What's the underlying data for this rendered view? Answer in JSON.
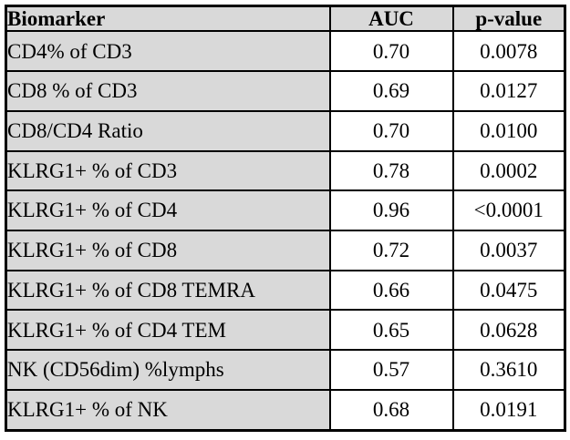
{
  "colors": {
    "shaded_bg": "#d9d9d9",
    "value_bg": "#ffffff",
    "border": "#000000",
    "text": "#000000"
  },
  "table": {
    "columns": [
      "Biomarker",
      "AUC",
      "p-value"
    ],
    "rows": [
      {
        "biomarker": "CD4% of CD3",
        "auc": "0.70",
        "p": "0.0078"
      },
      {
        "biomarker": "CD8 % of CD3",
        "auc": "0.69",
        "p": "0.0127"
      },
      {
        "biomarker": "CD8/CD4 Ratio",
        "auc": "0.70",
        "p": "0.0100"
      },
      {
        "biomarker": "KLRG1+ % of CD3",
        "auc": "0.78",
        "p": "0.0002"
      },
      {
        "biomarker": "KLRG1+ % of CD4",
        "auc": "0.96",
        "p": "<0.0001"
      },
      {
        "biomarker": "KLRG1+ % of CD8",
        "auc": "0.72",
        "p": "0.0037"
      },
      {
        "biomarker": "KLRG1+ % of CD8 TEMRA",
        "auc": "0.66",
        "p": "0.0475"
      },
      {
        "biomarker": "KLRG1+ % of CD4 TEM",
        "auc": "0.65",
        "p": "0.0628"
      },
      {
        "biomarker": "NK (CD56dim) %lymphs",
        "auc": "0.57",
        "p": "0.3610"
      },
      {
        "biomarker": "KLRG1+ % of NK",
        "auc": "0.68",
        "p": "0.0191"
      }
    ]
  },
  "chart_data": {
    "type": "table",
    "title": "",
    "columns": [
      "Biomarker",
      "AUC",
      "p-value"
    ],
    "rows": [
      [
        "CD4% of CD3",
        0.7,
        "0.0078"
      ],
      [
        "CD8 % of CD3",
        0.69,
        "0.0127"
      ],
      [
        "CD8/CD4 Ratio",
        0.7,
        "0.0100"
      ],
      [
        "KLRG1+ % of CD3",
        0.78,
        "0.0002"
      ],
      [
        "KLRG1+ % of CD4",
        0.96,
        "<0.0001"
      ],
      [
        "KLRG1+ % of CD8",
        0.72,
        "0.0037"
      ],
      [
        "KLRG1+ % of CD8 TEMRA",
        0.66,
        "0.0475"
      ],
      [
        "KLRG1+ % of CD4 TEM",
        0.65,
        "0.0628"
      ],
      [
        "NK (CD56dim) %lymphs",
        0.57,
        "0.3610"
      ],
      [
        "KLRG1+ % of NK",
        0.68,
        "0.0191"
      ]
    ]
  }
}
